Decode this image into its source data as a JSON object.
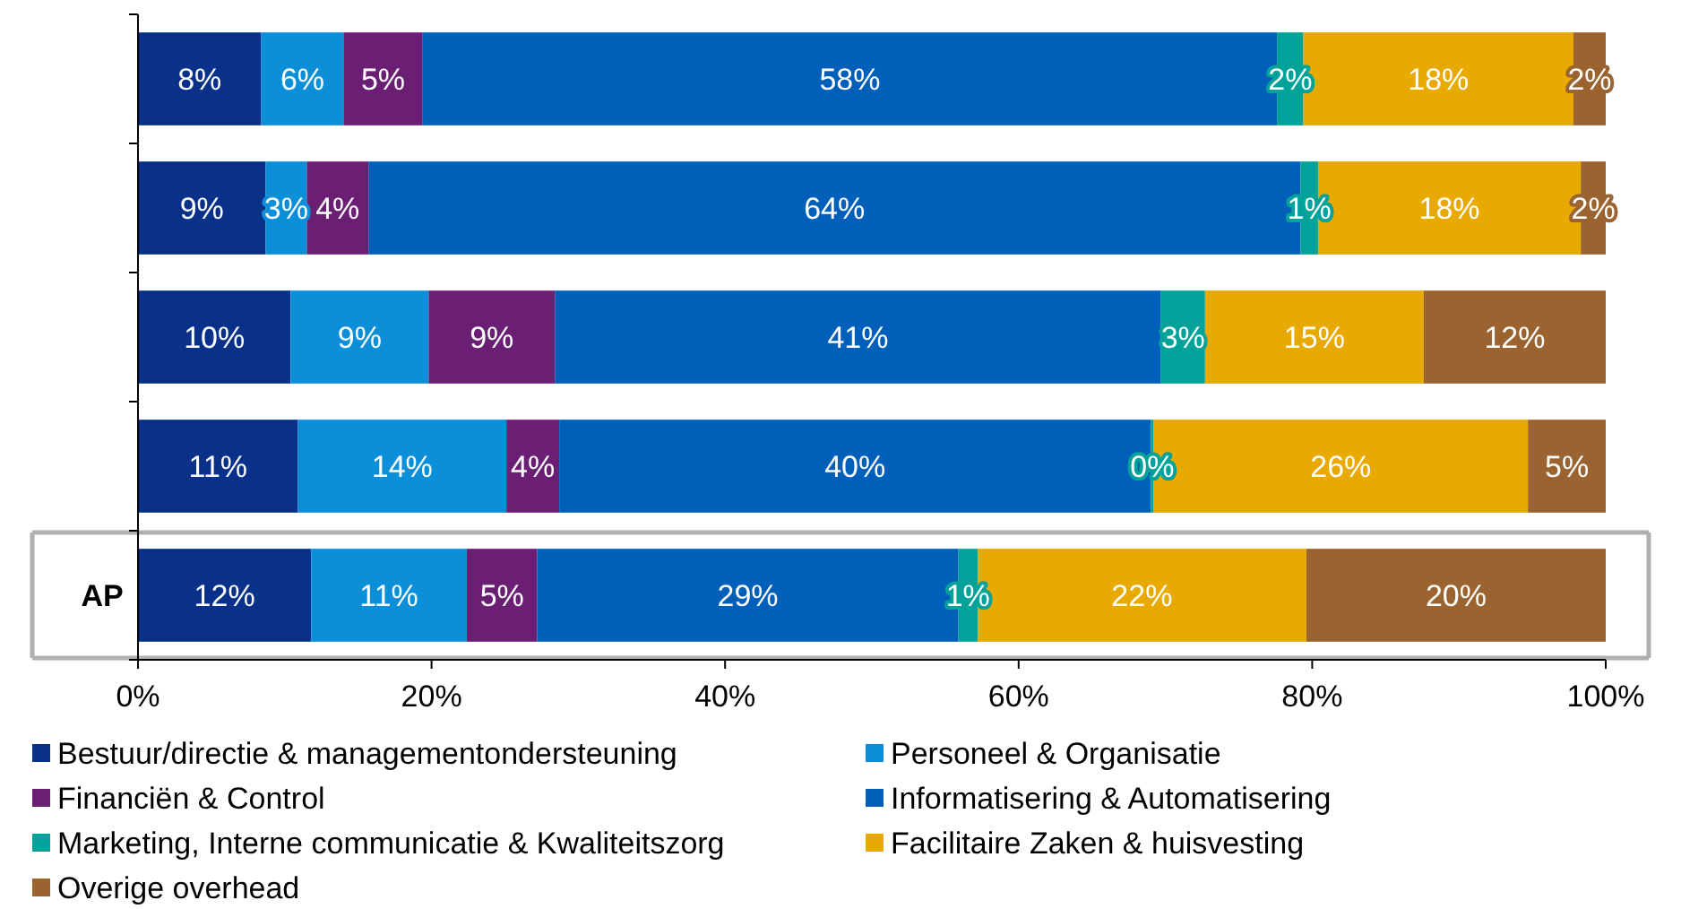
{
  "chart_data": {
    "type": "bar",
    "orientation": "horizontal",
    "stacked": true,
    "categories": [
      null,
      null,
      null,
      null,
      "AP"
    ],
    "series": [
      {
        "name": "Bestuur/directie & managementondersteuning",
        "color": "#0a318a",
        "values": [
          8.4,
          8.7,
          10.4,
          10.9,
          11.8
        ],
        "value_labels": [
          "8%",
          "9%",
          "10%",
          "11%",
          "12%"
        ]
      },
      {
        "name": "Personeel & Organisatie",
        "color": "#0a8fd8",
        "values": [
          5.6,
          2.8,
          9.4,
          14.2,
          10.6
        ],
        "value_labels": [
          "6%",
          "3%",
          "9%",
          "14%",
          "11%"
        ]
      },
      {
        "name": "Financiën & Control",
        "color": "#6b1f74",
        "values": [
          5.4,
          4.2,
          8.6,
          3.6,
          4.8
        ],
        "value_labels": [
          "5%",
          "4%",
          "9%",
          "4%",
          "5%"
        ]
      },
      {
        "name": "Informatisering & Automatisering",
        "color": "#005fb8",
        "values": [
          58.2,
          63.5,
          41.3,
          40.3,
          28.7
        ],
        "value_labels": [
          "58%",
          "64%",
          "41%",
          "40%",
          "29%"
        ]
      },
      {
        "name": "Marketing, Interne communicatie & Kwaliteitszorg",
        "color": "#00a29a",
        "values": [
          1.8,
          1.2,
          3.0,
          0.2,
          1.3
        ],
        "value_labels": [
          "2%",
          "1%",
          "3%",
          "0%",
          "1%"
        ]
      },
      {
        "name": "Facilitaire Zaken & huisvesting",
        "color": "#e8a900",
        "values": [
          18.4,
          17.9,
          14.9,
          25.5,
          22.4
        ],
        "value_labels": [
          "18%",
          "18%",
          "15%",
          "26%",
          "22%"
        ]
      },
      {
        "name": "Overige overhead",
        "color": "#9a6330",
        "values": [
          2.2,
          1.7,
          12.4,
          5.3,
          20.4
        ],
        "value_labels": [
          "2%",
          "2%",
          "12%",
          "5%",
          "20%"
        ]
      }
    ],
    "xlim": [
      0,
      100
    ],
    "xticks": [
      {
        "value": 0,
        "label": "0%"
      },
      {
        "value": 20,
        "label": "20%"
      },
      {
        "value": 40,
        "label": "40%"
      },
      {
        "value": 60,
        "label": "60%"
      },
      {
        "value": 80,
        "label": "80%"
      },
      {
        "value": 100,
        "label": "100%"
      }
    ],
    "grid": false,
    "legend": "bottom"
  }
}
